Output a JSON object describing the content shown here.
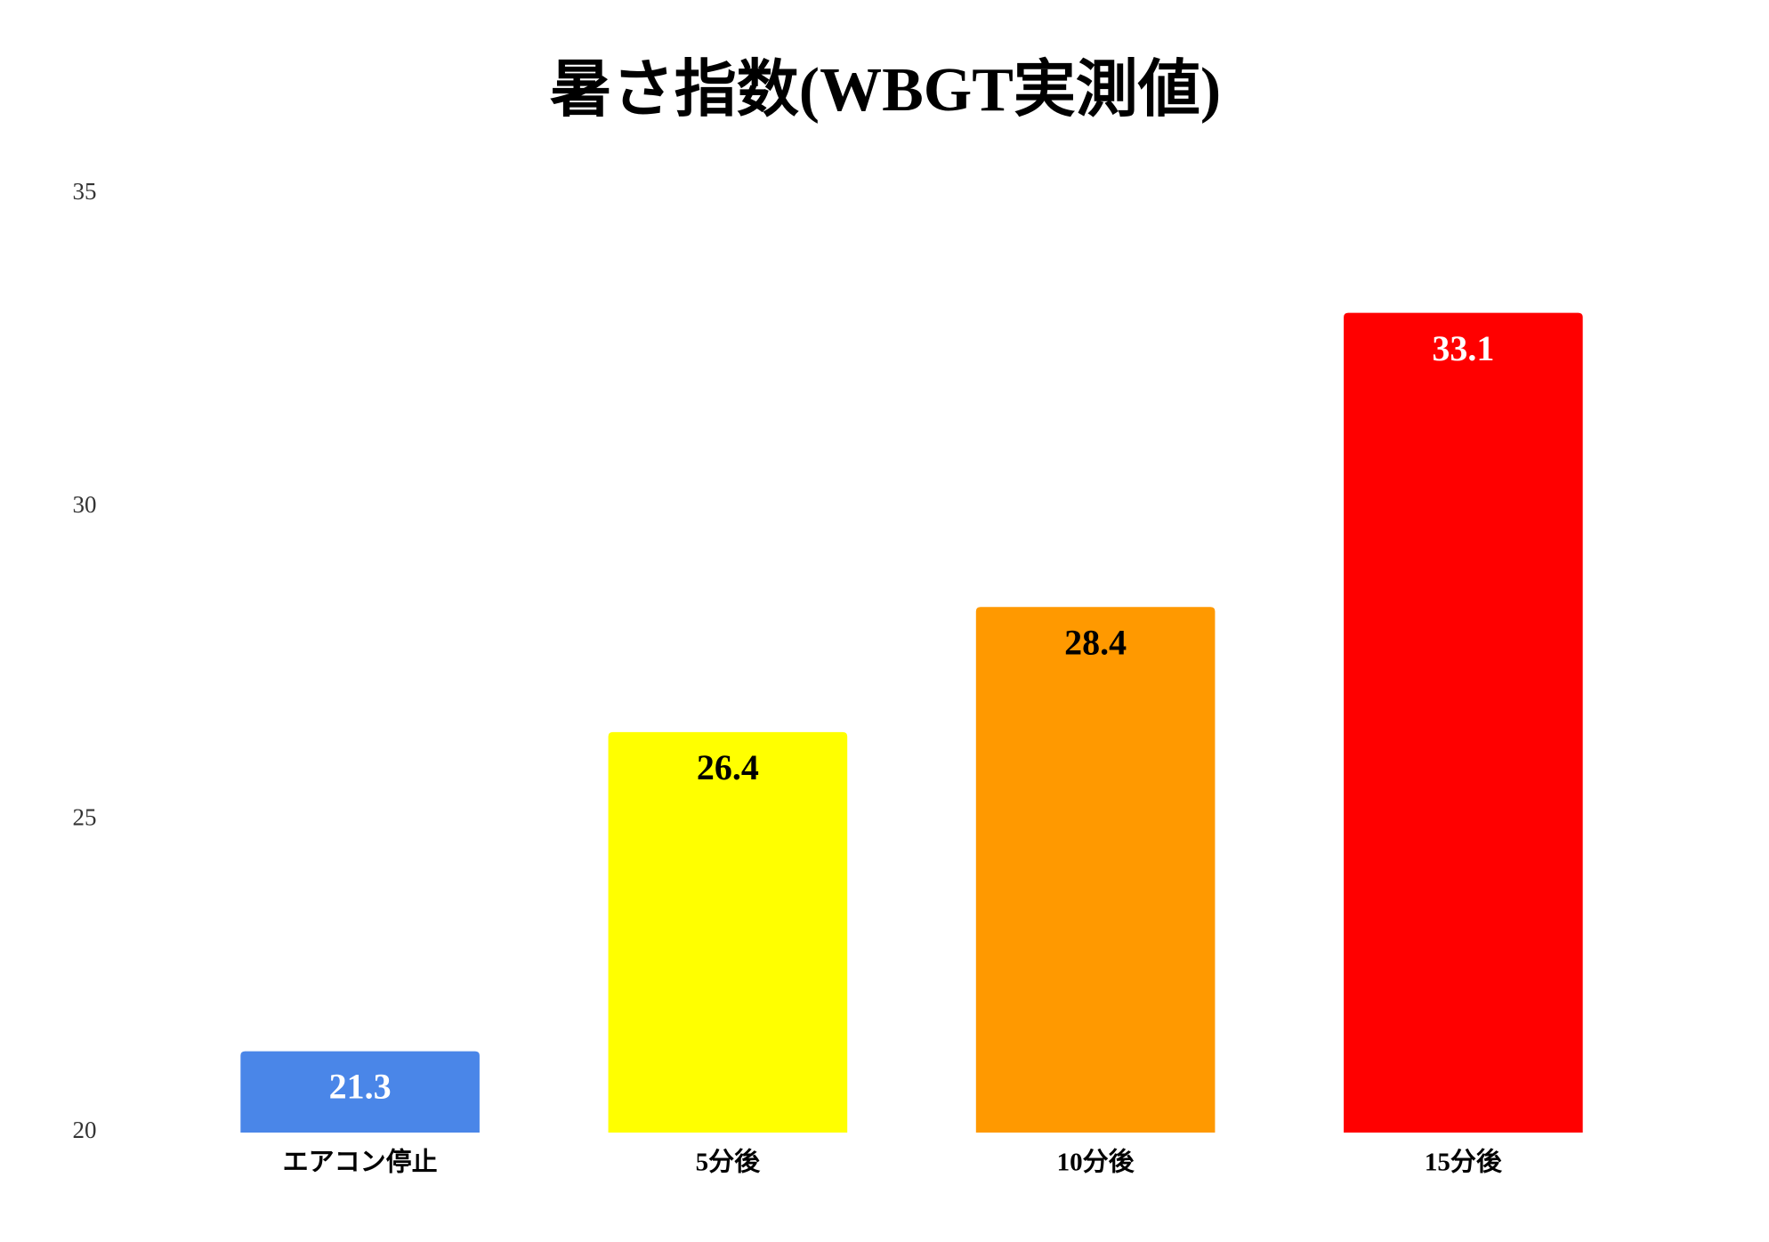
{
  "chart_data": {
    "type": "bar",
    "title": "暑さ指数(WBGT実測値)",
    "categories": [
      "エアコン停止",
      "5分後",
      "10分後",
      "15分後"
    ],
    "values": [
      21.3,
      26.4,
      28.4,
      33.1
    ],
    "colors": [
      "#4a86e8",
      "#ffff00",
      "#ff9900",
      "#ff0000"
    ],
    "label_colors": [
      "#ffffff",
      "#000000",
      "#000000",
      "#ffffff"
    ],
    "ylim": [
      20,
      35
    ],
    "yticks": [
      20,
      25,
      30,
      35
    ],
    "grid": false
  }
}
